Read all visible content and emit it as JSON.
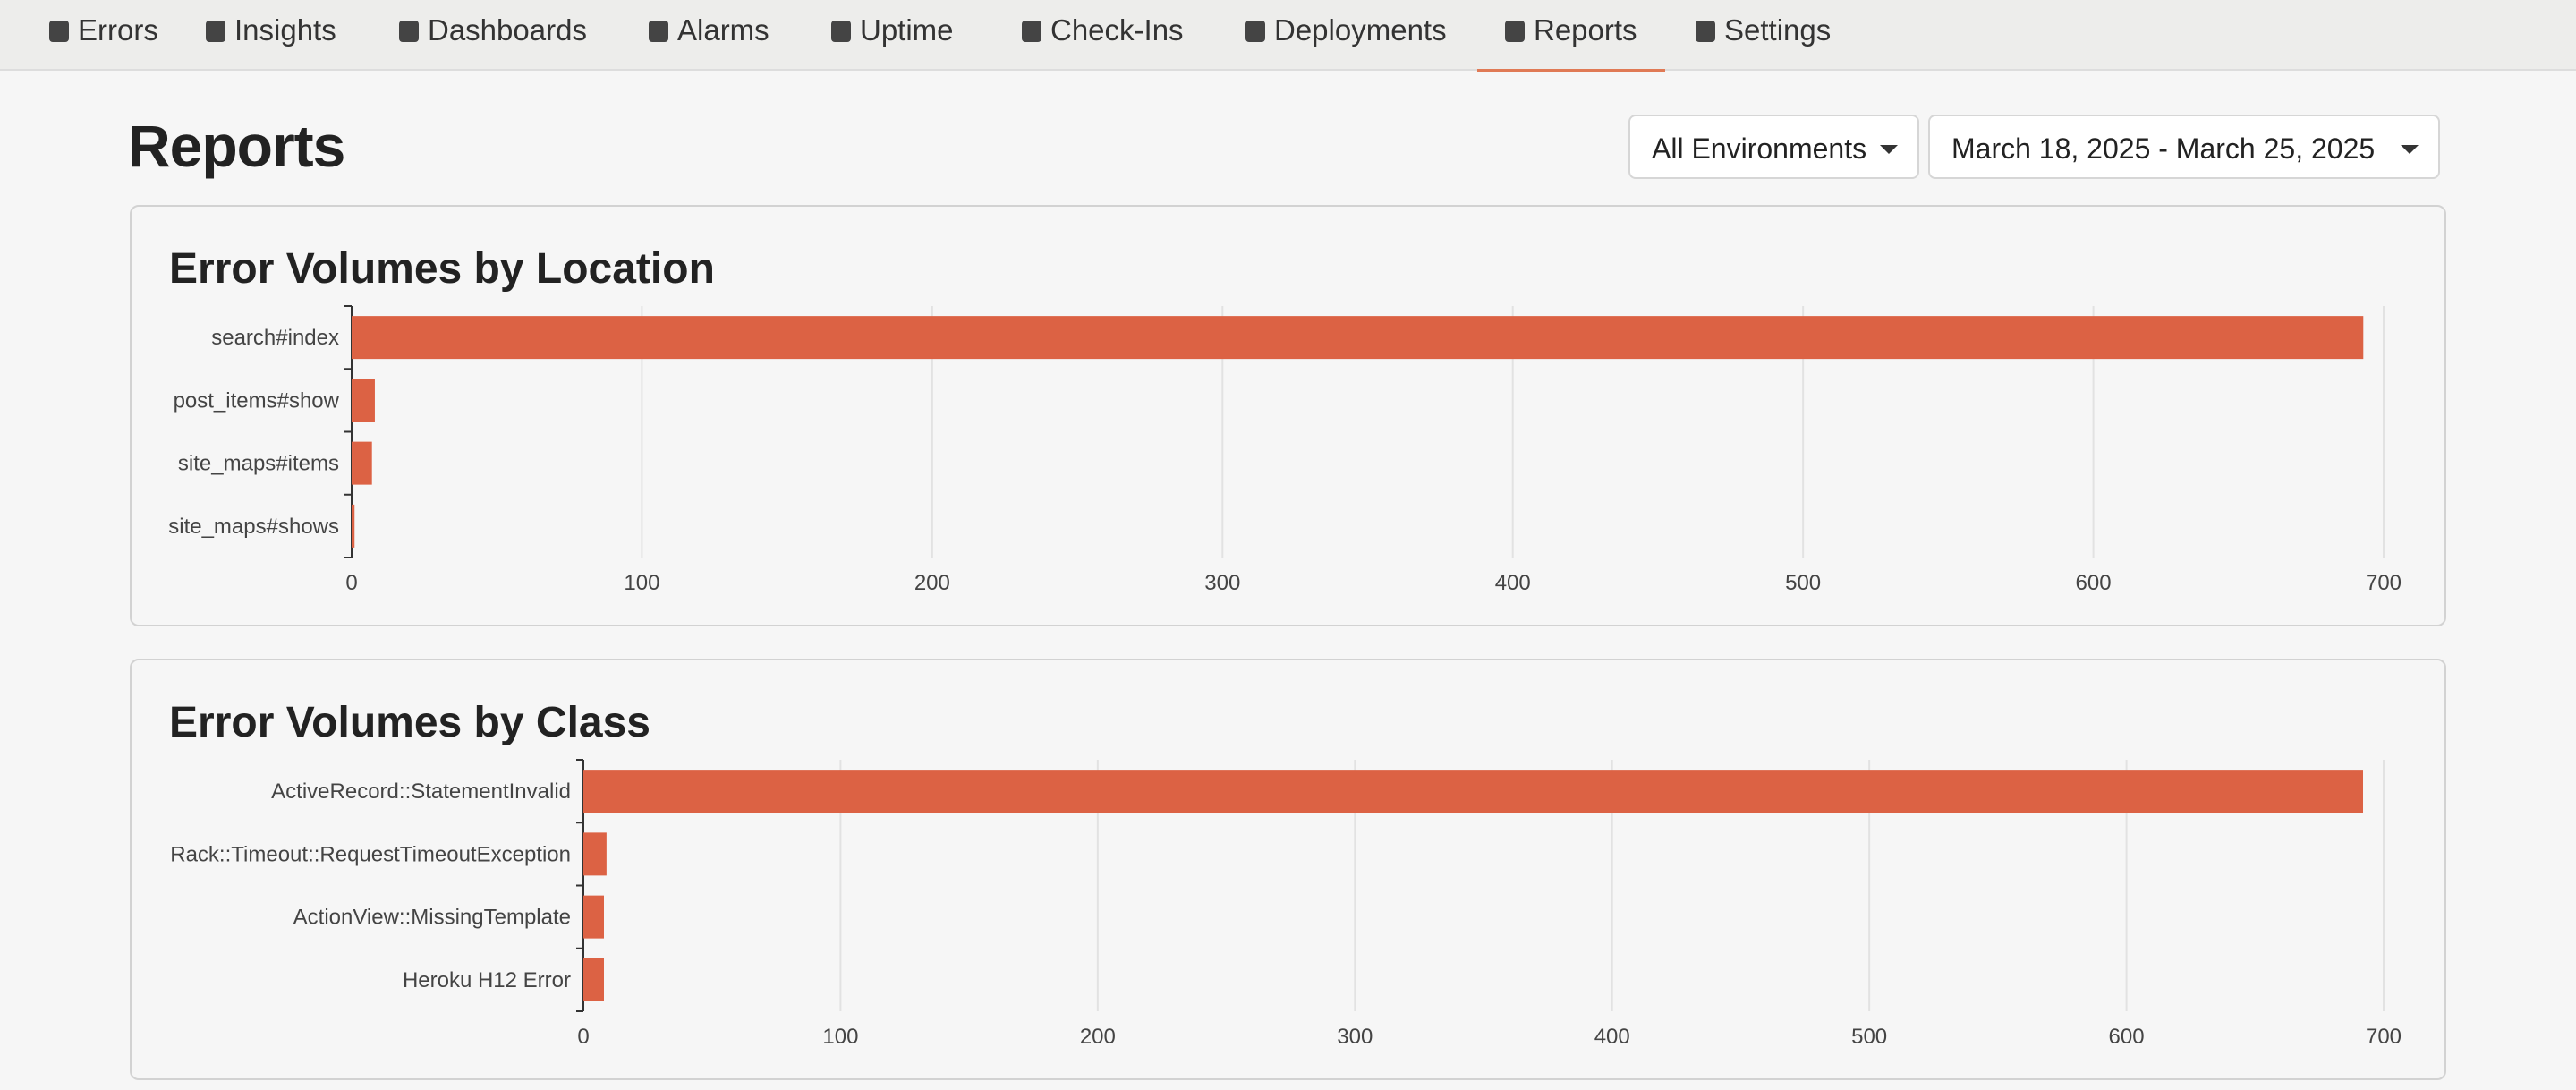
{
  "nav": {
    "items": [
      "Errors",
      "Insights",
      "Dashboards",
      "Alarms",
      "Uptime",
      "Check-Ins",
      "Deployments",
      "Reports",
      "Settings"
    ]
  },
  "header": {
    "title": "Reports",
    "environment": "All Environments",
    "date_range": "March 18, 2025 - March 25, 2025"
  },
  "chart_data": [
    {
      "type": "bar",
      "orientation": "horizontal",
      "title": "Error Volumes by Location",
      "categories": [
        "search#index",
        "post_items#show",
        "site_maps#items",
        "site_maps#shows"
      ],
      "values": [
        693,
        8,
        7,
        1
      ],
      "color": "#dc6244",
      "xlim": [
        0,
        700
      ],
      "xticks": [
        0,
        100,
        200,
        300,
        400,
        500,
        600,
        700
      ],
      "grid": true
    },
    {
      "type": "bar",
      "orientation": "horizontal",
      "title": "Error Volumes by Class",
      "categories": [
        "ActiveRecord::StatementInvalid",
        "Rack::Timeout::RequestTimeoutException",
        "ActionView::MissingTemplate",
        "Heroku H12 Error"
      ],
      "values": [
        692,
        9,
        8,
        8
      ],
      "color": "#dc6244",
      "xlim": [
        0,
        700
      ],
      "xticks": [
        0,
        100,
        200,
        300,
        400,
        500,
        600,
        700
      ],
      "grid": true
    }
  ]
}
